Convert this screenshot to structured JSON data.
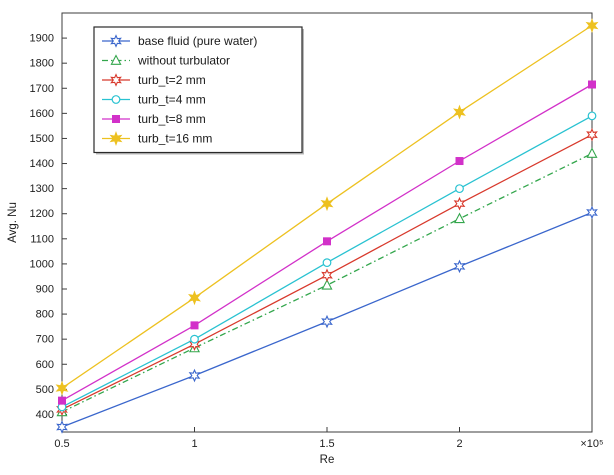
{
  "page": {
    "background": "#ffffff"
  },
  "chart_data": {
    "type": "line",
    "title": "",
    "xlabel": "Re",
    "ylabel": "Avg. Nu",
    "x_unit_label": "×10⁵",
    "x": [
      0.5,
      1,
      1.5,
      2,
      2.5
    ],
    "x_tick_labels": [
      "0.5",
      "1",
      "1.5",
      "2",
      "×10⁵"
    ],
    "xlim": [
      0.5,
      2.5
    ],
    "ylim": [
      330,
      2000
    ],
    "y_ticks": [
      400,
      500,
      600,
      700,
      800,
      900,
      1000,
      1100,
      1200,
      1300,
      1400,
      1500,
      1600,
      1700,
      1800,
      1900
    ],
    "grid": false,
    "legend_position": "top-left",
    "frame_color": "#3c3c3c",
    "text_color": "#202020",
    "series": [
      {
        "name": "base fluid (pure water)",
        "color": "#3a66cc",
        "line": "solid",
        "marker": "star-open",
        "values": [
          350,
          555,
          770,
          990,
          1205
        ]
      },
      {
        "name": "without turbulator",
        "color": "#33a64c",
        "line": "dashdot",
        "marker": "triangle-open",
        "values": [
          410,
          665,
          915,
          1180,
          1440
        ]
      },
      {
        "name": "turb_t=2 mm",
        "color": "#d8392c",
        "line": "solid",
        "marker": "star-open",
        "values": [
          420,
          680,
          955,
          1240,
          1515
        ]
      },
      {
        "name": "turb_t=4 mm",
        "color": "#29c2d1",
        "line": "solid",
        "marker": "circle-open",
        "values": [
          430,
          700,
          1005,
          1300,
          1590
        ]
      },
      {
        "name": "turb_t=8 mm",
        "color": "#d231c9",
        "line": "solid",
        "marker": "square-filled",
        "values": [
          455,
          755,
          1090,
          1410,
          1715
        ]
      },
      {
        "name": "turb_t=16 mm",
        "color": "#edc120",
        "line": "solid",
        "marker": "star-filled",
        "values": [
          505,
          865,
          1240,
          1605,
          1950
        ]
      }
    ]
  }
}
